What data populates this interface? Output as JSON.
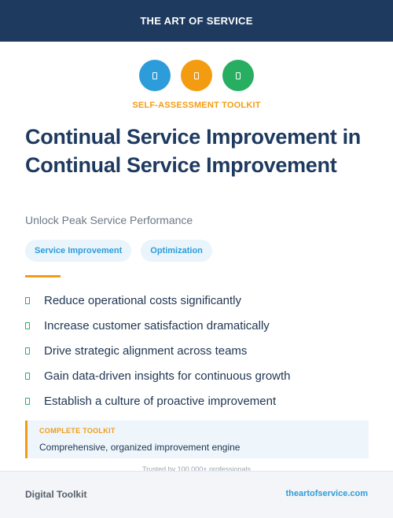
{
  "header": {
    "brand": "THE ART OF SERVICE"
  },
  "icons": [
    {
      "name": "document-icon",
      "color": "#2d9cdb"
    },
    {
      "name": "document-icon",
      "color": "#f39c12"
    },
    {
      "name": "document-icon",
      "color": "#27ae60"
    }
  ],
  "kicker": "SELF-ASSESSMENT TOOLKIT",
  "title": "Continual Service Improvement in Continual Service Improvement",
  "subtitle": "Unlock Peak Service Performance",
  "tags": [
    "Service Improvement",
    "Optimization"
  ],
  "benefits": [
    "Reduce operational costs significantly",
    "Increase customer satisfaction dramatically",
    "Drive strategic alignment across teams",
    "Gain data-driven insights for continuous growth",
    "Establish a culture of proactive improvement"
  ],
  "callout": {
    "label": "COMPLETE TOOLKIT",
    "text": "Comprehensive, organized improvement engine"
  },
  "trusted": "Trusted by 100,000+ professionals",
  "footer": {
    "left": "Digital Toolkit",
    "right": "theartofservice.com"
  },
  "colors": {
    "navy": "#1e3a5f",
    "orange": "#f39c12",
    "blue": "#2d9cdb",
    "green": "#27ae60"
  }
}
